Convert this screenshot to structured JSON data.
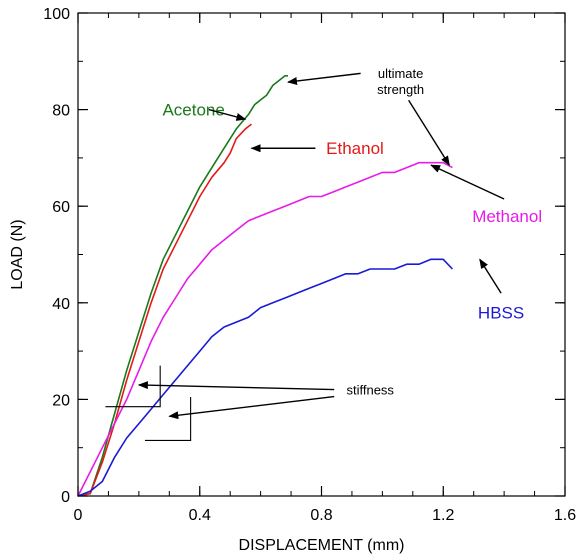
{
  "chart_data": {
    "type": "line",
    "xlabel": "DISPLACEMENT (mm)",
    "ylabel": "LOAD (N)",
    "xlim": [
      0,
      1.6
    ],
    "ylim": [
      0,
      100
    ],
    "xticks": [
      0,
      0.4,
      0.8,
      1.2,
      1.6
    ],
    "yticks": [
      0,
      20,
      40,
      60,
      80,
      100
    ],
    "xtick_labels": [
      "0",
      "0.4",
      "0.8",
      "1.2",
      "1.6"
    ],
    "ytick_labels": [
      "0",
      "20",
      "40",
      "60",
      "80",
      "100"
    ],
    "grid": false,
    "series": [
      {
        "name": "Acetone",
        "color": "#1a7a1a",
        "points": [
          [
            0,
            0
          ],
          [
            0.04,
            0.5
          ],
          [
            0.08,
            8
          ],
          [
            0.12,
            17
          ],
          [
            0.16,
            26
          ],
          [
            0.2,
            34
          ],
          [
            0.24,
            42
          ],
          [
            0.28,
            49
          ],
          [
            0.32,
            54
          ],
          [
            0.36,
            59
          ],
          [
            0.4,
            64
          ],
          [
            0.44,
            68
          ],
          [
            0.48,
            72
          ],
          [
            0.52,
            76
          ],
          [
            0.56,
            79
          ],
          [
            0.58,
            81
          ],
          [
            0.6,
            82
          ],
          [
            0.62,
            83
          ],
          [
            0.64,
            85
          ],
          [
            0.66,
            86
          ],
          [
            0.68,
            87
          ],
          [
            0.69,
            87
          ]
        ]
      },
      {
        "name": "Ethanol",
        "color": "#e31a1a",
        "points": [
          [
            0,
            0
          ],
          [
            0.04,
            0.5
          ],
          [
            0.08,
            7
          ],
          [
            0.12,
            15
          ],
          [
            0.16,
            24
          ],
          [
            0.2,
            32
          ],
          [
            0.24,
            40
          ],
          [
            0.28,
            47
          ],
          [
            0.32,
            52
          ],
          [
            0.36,
            57
          ],
          [
            0.4,
            62
          ],
          [
            0.44,
            66
          ],
          [
            0.48,
            69
          ],
          [
            0.5,
            71
          ],
          [
            0.52,
            74
          ],
          [
            0.55,
            76
          ],
          [
            0.57,
            77
          ]
        ]
      },
      {
        "name": "Methanol",
        "color": "#e81ce8",
        "points": [
          [
            0,
            0
          ],
          [
            0.04,
            5
          ],
          [
            0.08,
            10
          ],
          [
            0.12,
            15
          ],
          [
            0.16,
            20
          ],
          [
            0.2,
            26
          ],
          [
            0.24,
            32
          ],
          [
            0.28,
            37
          ],
          [
            0.32,
            41
          ],
          [
            0.36,
            45
          ],
          [
            0.4,
            48
          ],
          [
            0.44,
            51
          ],
          [
            0.48,
            53
          ],
          [
            0.52,
            55
          ],
          [
            0.56,
            57
          ],
          [
            0.6,
            58
          ],
          [
            0.64,
            59
          ],
          [
            0.68,
            60
          ],
          [
            0.72,
            61
          ],
          [
            0.76,
            62
          ],
          [
            0.8,
            62
          ],
          [
            0.84,
            63
          ],
          [
            0.88,
            64
          ],
          [
            0.92,
            65
          ],
          [
            0.96,
            66
          ],
          [
            1.0,
            67
          ],
          [
            1.04,
            67
          ],
          [
            1.08,
            68
          ],
          [
            1.12,
            69
          ],
          [
            1.16,
            69
          ],
          [
            1.2,
            69
          ],
          [
            1.23,
            68
          ]
        ]
      },
      {
        "name": "HBSS",
        "color": "#1a1ad6",
        "points": [
          [
            0,
            0
          ],
          [
            0.04,
            1
          ],
          [
            0.08,
            3
          ],
          [
            0.12,
            8
          ],
          [
            0.16,
            12
          ],
          [
            0.2,
            15
          ],
          [
            0.24,
            18
          ],
          [
            0.28,
            21
          ],
          [
            0.32,
            24
          ],
          [
            0.36,
            27
          ],
          [
            0.4,
            30
          ],
          [
            0.44,
            33
          ],
          [
            0.48,
            35
          ],
          [
            0.52,
            36
          ],
          [
            0.56,
            37
          ],
          [
            0.6,
            39
          ],
          [
            0.64,
            40
          ],
          [
            0.68,
            41
          ],
          [
            0.72,
            42
          ],
          [
            0.76,
            43
          ],
          [
            0.8,
            44
          ],
          [
            0.84,
            45
          ],
          [
            0.88,
            46
          ],
          [
            0.92,
            46
          ],
          [
            0.96,
            47
          ],
          [
            1.0,
            47
          ],
          [
            1.04,
            47
          ],
          [
            1.08,
            48
          ],
          [
            1.12,
            48
          ],
          [
            1.16,
            49
          ],
          [
            1.2,
            49
          ],
          [
            1.23,
            47
          ]
        ]
      }
    ],
    "series_labels": [
      {
        "text": "Acetone",
        "x": 0.38,
        "y": 80,
        "color": "#1a7a1a"
      },
      {
        "text": "Ethanol",
        "x": 0.91,
        "y": 72,
        "color": "#e31a1a"
      },
      {
        "text": "Methanol",
        "x": 1.41,
        "y": 58,
        "color": "#e81ce8"
      },
      {
        "text": "HBSS",
        "x": 1.39,
        "y": 38,
        "color": "#1a1ad6"
      }
    ],
    "annotations": [
      {
        "text": "ultimate strength",
        "lines": [
          "ultimate",
          "strength"
        ],
        "x": 1.06,
        "y": 86.5
      }
    ],
    "annotation_stiffness": {
      "text": "stiffness",
      "x": 0.96,
      "y": 21
    }
  }
}
